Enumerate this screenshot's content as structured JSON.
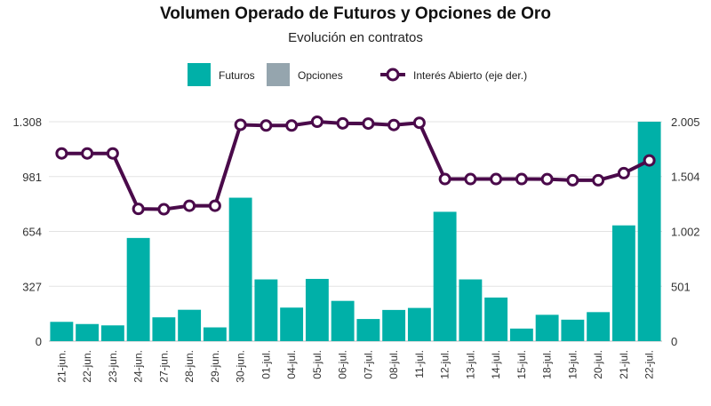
{
  "chart_data": {
    "type": "bar",
    "title": "Volumen Operado de Futuros y Opciones de Oro",
    "subtitle": "Evolución en contratos",
    "categories": [
      "21-jun.",
      "22-jun.",
      "23-jun.",
      "24-jun.",
      "27-jun.",
      "28-jun.",
      "29-jun.",
      "30-jun.",
      "01-jul.",
      "04-jul.",
      "05-jul.",
      "06-jul.",
      "07-jul.",
      "08-jul.",
      "11-jul.",
      "12-jul.",
      "13-jul.",
      "14-jul.",
      "15-jul.",
      "18-jul.",
      "19-jul.",
      "20-jul.",
      "21-jul.",
      "22-jul."
    ],
    "series": [
      {
        "name": "Futuros",
        "type": "bar",
        "axis": "left",
        "color": "#00b0a8",
        "values": [
          115,
          102,
          94,
          615,
          142,
          187,
          82,
          855,
          368,
          200,
          371,
          240,
          132,
          186,
          198,
          771,
          368,
          260,
          75,
          157,
          128,
          173,
          690,
          1308
        ]
      },
      {
        "name": "Opciones",
        "type": "bar",
        "axis": "left",
        "color": "#95a5ae",
        "values": [
          0,
          0,
          0,
          0,
          0,
          0,
          0,
          0,
          0,
          0,
          0,
          0,
          0,
          0,
          0,
          0,
          0,
          0,
          0,
          0,
          0,
          0,
          0,
          0
        ]
      },
      {
        "name": "Interés Abierto (eje der.)",
        "type": "line",
        "axis": "right",
        "color": "#4a0a4a",
        "values": [
          1715,
          1715,
          1715,
          1208,
          1205,
          1237,
          1237,
          1977,
          1970,
          1970,
          2005,
          1990,
          1988,
          1975,
          1995,
          1481,
          1481,
          1481,
          1481,
          1480,
          1470,
          1470,
          1535,
          1651
        ]
      }
    ],
    "y_left": {
      "ticks": [
        0,
        327,
        654,
        981,
        1308
      ],
      "tick_labels": [
        "0",
        "327",
        "654",
        "981",
        "1.308"
      ],
      "ylim": [
        0,
        1308
      ]
    },
    "y_right": {
      "ticks": [
        0,
        501,
        1002,
        1504,
        2005
      ],
      "tick_labels": [
        "0",
        "501",
        "1.002",
        "1.504",
        "2.005"
      ],
      "ylim": [
        0,
        2005
      ]
    },
    "grid": true,
    "legend_position": "top-center"
  }
}
